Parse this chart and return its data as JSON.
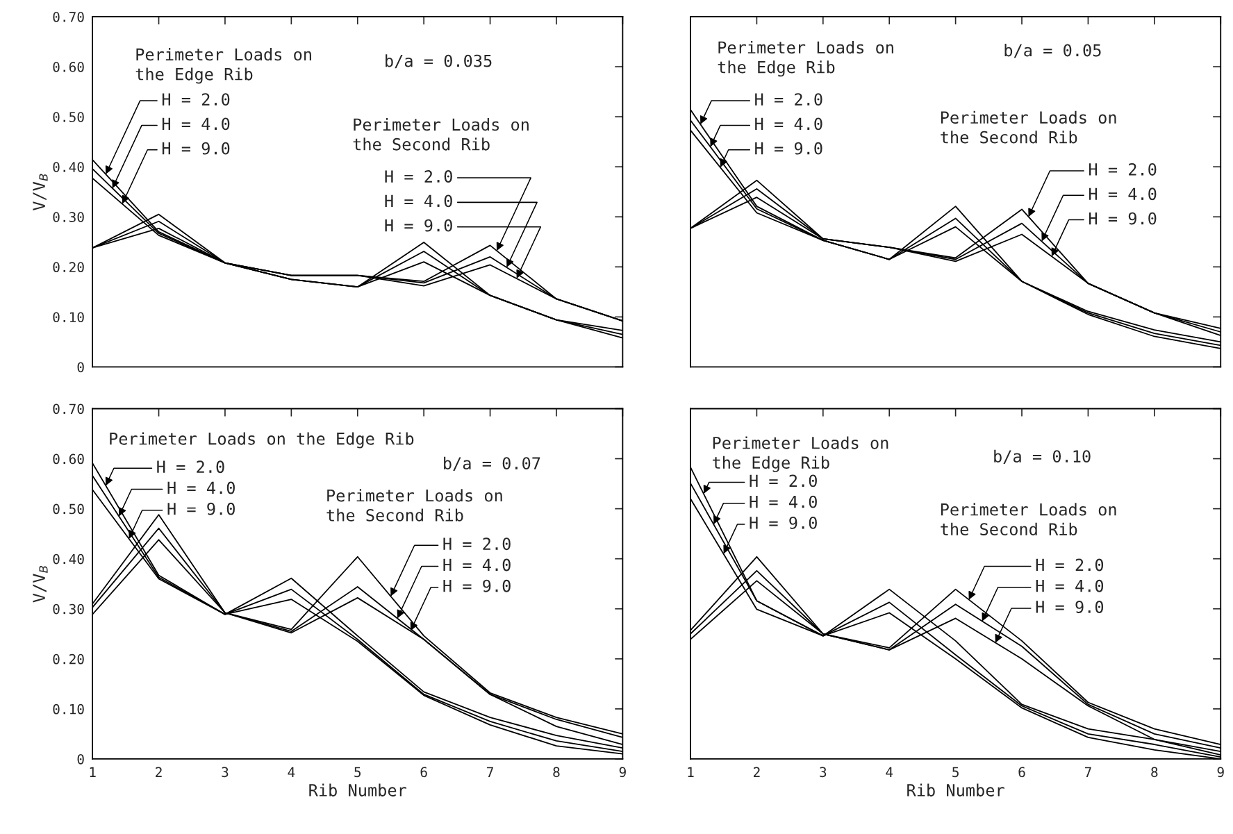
{
  "chart_data": [
    {
      "type": "line",
      "x": [
        1,
        2,
        3,
        4,
        5,
        6,
        7,
        8,
        9
      ],
      "xlim": [
        1,
        9
      ],
      "xticks": [
        {
          "value": 1,
          "label": null
        },
        {
          "value": 2,
          "label": null
        },
        {
          "value": 3,
          "label": null
        },
        {
          "value": 4,
          "label": null
        },
        {
          "value": 5,
          "label": null
        },
        {
          "value": 6,
          "label": null
        },
        {
          "value": 7,
          "label": null
        },
        {
          "value": 8,
          "label": null
        },
        {
          "value": 9,
          "label": null
        }
      ],
      "ylim": [
        0,
        0.7
      ],
      "yticks": [
        0,
        {
          "value": 0.1,
          "label": "0.10"
        },
        {
          "value": 0.2,
          "label": "0.20"
        },
        {
          "value": 0.3,
          "label": "0.30"
        },
        {
          "value": 0.4,
          "label": "0.40"
        },
        {
          "value": 0.5,
          "label": "0.50"
        },
        {
          "value": 0.6,
          "label": "0.60"
        },
        {
          "value": 0.7,
          "label": "0.70"
        }
      ],
      "ylabel": "V/V$_{B}$",
      "tick_labels": "y",
      "grid": false,
      "series": [
        {
          "color": "#000000",
          "values": [
            0.414,
            0.27,
            0.208,
            0.175,
            0.16,
            0.249,
            0.143,
            0.094,
            0.073
          ]
        },
        {
          "color": "#000000",
          "values": [
            0.396,
            0.267,
            0.208,
            0.175,
            0.16,
            0.231,
            0.143,
            0.094,
            0.065
          ]
        },
        {
          "color": "#000000",
          "values": [
            0.377,
            0.263,
            0.208,
            0.175,
            0.16,
            0.21,
            0.143,
            0.094,
            0.058
          ]
        },
        {
          "color": "#000000",
          "values": [
            0.238,
            0.305,
            0.208,
            0.183,
            0.183,
            0.171,
            0.243,
            0.136,
            0.092
          ]
        },
        {
          "color": "#000000",
          "values": [
            0.238,
            0.291,
            0.208,
            0.183,
            0.183,
            0.168,
            0.22,
            0.136,
            0.092
          ]
        },
        {
          "color": "#000000",
          "values": [
            0.238,
            0.277,
            0.208,
            0.183,
            0.183,
            0.162,
            0.204,
            0.136,
            0.092
          ]
        }
      ],
      "annotations": [
        "Perimeter Loads on\nthe Edge Rib",
        {
          "text": "H = 2.0",
          "x": 1.2,
          "y": 0.385
        },
        {
          "text": "H = 4.0",
          "x": 1.3,
          "y": 0.357
        },
        {
          "text": "H = 9.0",
          "x": 1.45,
          "y": 0.326
        },
        "b/a = 0.035",
        "Perimeter Loads on\nthe Second Rib",
        {
          "text": "H = 2.0",
          "x": 7.1,
          "y": 0.232
        },
        {
          "text": "H = 4.0",
          "x": 7.25,
          "y": 0.199
        },
        {
          "text": "H = 9.0",
          "x": 7.4,
          "y": 0.177
        }
      ]
    },
    {
      "type": "line",
      "x": [
        1,
        2,
        3,
        4,
        5,
        6,
        7,
        8,
        9
      ],
      "xlim": [
        1,
        9
      ],
      "xticks": [
        {
          "value": 1,
          "label": null
        },
        {
          "value": 2,
          "label": null
        },
        {
          "value": 3,
          "label": null
        },
        {
          "value": 4,
          "label": null
        },
        {
          "value": 5,
          "label": null
        },
        {
          "value": 6,
          "label": null
        },
        {
          "value": 7,
          "label": null
        },
        {
          "value": 8,
          "label": null
        },
        {
          "value": 9,
          "label": null
        }
      ],
      "ylim": [
        0,
        0.7
      ],
      "yticks": [
        {
          "value": 0,
          "label": null
        },
        {
          "value": 0.1,
          "label": null
        },
        {
          "value": 0.2,
          "label": null
        },
        {
          "value": 0.3,
          "label": null
        },
        {
          "value": 0.4,
          "label": null
        },
        {
          "value": 0.5,
          "label": null
        },
        {
          "value": 0.6,
          "label": null
        },
        {
          "value": 0.7,
          "label": null
        }
      ],
      "tick_labels": false,
      "grid": false,
      "series": [
        {
          "color": "#000000",
          "values": [
            0.514,
            0.321,
            0.253,
            0.215,
            0.321,
            0.171,
            0.111,
            0.074,
            0.05
          ]
        },
        {
          "color": "#000000",
          "values": [
            0.493,
            0.316,
            0.253,
            0.215,
            0.297,
            0.171,
            0.108,
            0.067,
            0.043
          ]
        },
        {
          "color": "#000000",
          "values": [
            0.473,
            0.308,
            0.253,
            0.215,
            0.28,
            0.171,
            0.105,
            0.061,
            0.037
          ]
        },
        {
          "color": "#000000",
          "values": [
            0.277,
            0.373,
            0.256,
            0.239,
            0.218,
            0.315,
            0.167,
            0.108,
            0.077
          ]
        },
        {
          "color": "#000000",
          "values": [
            0.277,
            0.356,
            0.256,
            0.239,
            0.215,
            0.287,
            0.167,
            0.108,
            0.07
          ]
        },
        {
          "color": "#000000",
          "values": [
            0.277,
            0.339,
            0.256,
            0.239,
            0.211,
            0.265,
            0.167,
            0.108,
            0.063
          ]
        }
      ],
      "annotations": [
        "Perimeter Loads on\nthe Edge Rib",
        {
          "text": "H = 2.0",
          "x": 1.15,
          "y": 0.485
        },
        {
          "text": "H = 4.0",
          "x": 1.3,
          "y": 0.44
        },
        {
          "text": "H = 9.0",
          "x": 1.45,
          "y": 0.399
        },
        "b/a = 0.05",
        "Perimeter Loads on\nthe Second Rib",
        {
          "text": "H = 2.0",
          "x": 6.1,
          "y": 0.3
        },
        {
          "text": "H = 4.0",
          "x": 6.3,
          "y": 0.251
        },
        {
          "text": "H = 9.0",
          "x": 6.45,
          "y": 0.221
        }
      ]
    },
    {
      "type": "line",
      "x": [
        1,
        2,
        3,
        4,
        5,
        6,
        7,
        8,
        9
      ],
      "xlim": [
        1,
        9
      ],
      "xticks": [
        1,
        2,
        3,
        4,
        5,
        6,
        7,
        8,
        9
      ],
      "ylim": [
        0,
        0.7
      ],
      "yticks": [
        0,
        {
          "value": 0.1,
          "label": "0.10"
        },
        {
          "value": 0.2,
          "label": "0.20"
        },
        {
          "value": 0.3,
          "label": "0.30"
        },
        {
          "value": 0.4,
          "label": "0.40"
        },
        {
          "value": 0.5,
          "label": "0.50"
        },
        {
          "value": 0.6,
          "label": "0.60"
        },
        {
          "value": 0.7,
          "label": "0.70"
        }
      ],
      "xlabel": "Rib Number",
      "ylabel": "V/V$_{B}$",
      "grid": false,
      "series": [
        {
          "color": "#000000",
          "values": [
            0.591,
            0.367,
            0.289,
            0.361,
            0.246,
            0.134,
            0.083,
            0.047,
            0.022
          ]
        },
        {
          "color": "#000000",
          "values": [
            0.566,
            0.363,
            0.289,
            0.339,
            0.239,
            0.129,
            0.075,
            0.036,
            0.015
          ]
        },
        {
          "color": "#000000",
          "values": [
            0.538,
            0.36,
            0.289,
            0.319,
            0.235,
            0.127,
            0.068,
            0.026,
            0.01
          ]
        },
        {
          "color": "#000000",
          "values": [
            0.31,
            0.488,
            0.292,
            0.259,
            0.404,
            0.246,
            0.132,
            0.083,
            0.05
          ]
        },
        {
          "color": "#000000",
          "values": [
            0.303,
            0.461,
            0.292,
            0.255,
            0.344,
            0.239,
            0.129,
            0.079,
            0.043
          ]
        },
        {
          "color": "#000000",
          "values": [
            0.289,
            0.438,
            0.292,
            0.252,
            0.322,
            0.239,
            0.129,
            0.065,
            0.029
          ]
        }
      ],
      "annotations": [
        "Perimeter Loads on the Edge Rib",
        {
          "text": "H = 2.0",
          "x": 1.2,
          "y": 0.546
        },
        {
          "text": "H = 4.0",
          "x": 1.4,
          "y": 0.485
        },
        {
          "text": "H = 9.0",
          "x": 1.55,
          "y": 0.44
        },
        "b/a = 0.07",
        "Perimeter Loads on\nthe Second Rib",
        {
          "text": "H = 2.0",
          "x": 5.5,
          "y": 0.325
        },
        {
          "text": "H = 4.0",
          "x": 5.6,
          "y": 0.281
        },
        {
          "text": "H = 9.0",
          "x": 5.8,
          "y": 0.256
        }
      ]
    },
    {
      "type": "line",
      "x": [
        1,
        2,
        3,
        4,
        5,
        6,
        7,
        8,
        9
      ],
      "xlim": [
        1,
        9
      ],
      "xticks": [
        1,
        2,
        3,
        4,
        5,
        6,
        7,
        8,
        9
      ],
      "ylim": [
        0,
        0.7
      ],
      "yticks": [
        {
          "value": 0,
          "label": null
        },
        {
          "value": 0.1,
          "label": null
        },
        {
          "value": 0.2,
          "label": null
        },
        {
          "value": 0.3,
          "label": null
        },
        {
          "value": 0.4,
          "label": null
        },
        {
          "value": 0.5,
          "label": null
        },
        {
          "value": 0.6,
          "label": null
        },
        {
          "value": 0.7,
          "label": null
        }
      ],
      "xlabel": "Rib Number",
      "tick_labels": "x",
      "grid": false,
      "series": [
        {
          "color": "#000000",
          "values": [
            0.583,
            0.316,
            0.246,
            0.339,
            0.236,
            0.109,
            0.06,
            0.039,
            0.008
          ]
        },
        {
          "color": "#000000",
          "values": [
            0.551,
            0.316,
            0.246,
            0.313,
            0.208,
            0.106,
            0.05,
            0.029,
            0.004
          ]
        },
        {
          "color": "#000000",
          "values": [
            0.52,
            0.299,
            0.246,
            0.292,
            0.2,
            0.102,
            0.043,
            0.018,
            0
          ]
        },
        {
          "color": "#000000",
          "values": [
            0.257,
            0.404,
            0.25,
            0.222,
            0.339,
            0.236,
            0.113,
            0.06,
            0.029
          ]
        },
        {
          "color": "#000000",
          "values": [
            0.25,
            0.376,
            0.25,
            0.218,
            0.309,
            0.225,
            0.109,
            0.05,
            0.022
          ]
        },
        {
          "color": "#000000",
          "values": [
            0.239,
            0.356,
            0.25,
            0.218,
            0.281,
            0.2,
            0.106,
            0.039,
            0.015
          ]
        }
      ],
      "annotations": [
        "Perimeter Loads on\nthe Edge Rib",
        {
          "text": "H = 2.0",
          "x": 1.2,
          "y": 0.53
        },
        {
          "text": "H = 4.0",
          "x": 1.35,
          "y": 0.469
        },
        {
          "text": "H = 9.0",
          "x": 1.5,
          "y": 0.41
        },
        "b/a = 0.10",
        "Perimeter Loads on\nthe Second Rib",
        {
          "text": "H = 2.0",
          "x": 5.2,
          "y": 0.318
        },
        {
          "text": "H = 4.0",
          "x": 5.4,
          "y": 0.275
        },
        {
          "text": "H = 9.0",
          "x": 5.6,
          "y": 0.232
        }
      ]
    }
  ]
}
